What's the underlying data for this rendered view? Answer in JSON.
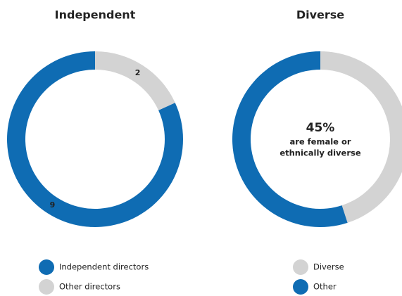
{
  "chart_data": [
    {
      "type": "donut",
      "title": "Independent",
      "categories": [
        "Independent directors",
        "Other directors"
      ],
      "values": [
        9,
        2
      ],
      "colors": [
        "#0f6cb3",
        "#d3d3d3"
      ],
      "direction": "counterclockwise",
      "data_labels": "segment",
      "legend": "bottom"
    },
    {
      "type": "donut",
      "title": "Diverse",
      "categories": [
        "Diverse",
        "Other"
      ],
      "values": [
        45,
        55
      ],
      "value_labels": [
        "45%",
        null
      ],
      "colors": [
        "#d3d3d3",
        "#0f6cb3"
      ],
      "direction": "clockwise",
      "data_labels": "center",
      "annotation": [
        "are female or",
        "ethnically diverse"
      ],
      "legend": "bottom"
    }
  ]
}
